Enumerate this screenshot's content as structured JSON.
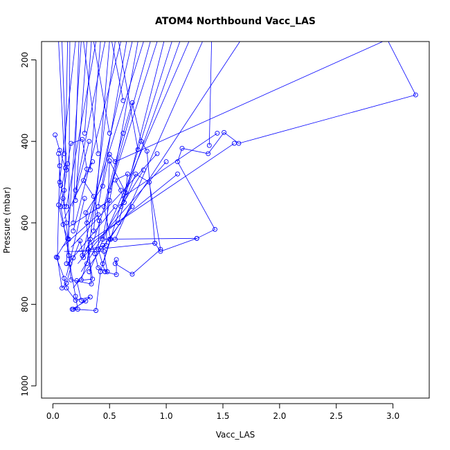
{
  "chart_data": {
    "type": "line",
    "title": "ATOM4 Northbound Vacc_LAS",
    "xlabel": "Vacc_LAS",
    "ylabel": "Pressure (mbar)",
    "xlim": [
      -0.1,
      3.32
    ],
    "ylim": [
      1030,
      155
    ],
    "y_reversed": true,
    "x_ticks": [
      "0.0",
      "0.5",
      "1.0",
      "1.5",
      "2.0",
      "2.5",
      "3.0"
    ],
    "y_ticks": [
      "200",
      "400",
      "600",
      "800",
      "1000"
    ],
    "grid": false,
    "legend": "none",
    "marker": "open-circle",
    "colors": {
      "series": "#0000ff",
      "axis": "#000000",
      "background": "#ffffff"
    },
    "series": [
      {
        "points": [
          [
            0.02,
            384
          ],
          [
            0.06,
            422
          ],
          [
            0.11,
            465
          ],
          [
            0.05,
            556
          ],
          [
            0.09,
            604
          ],
          [
            0.13,
            639
          ],
          [
            0.03,
            684
          ],
          [
            0.1,
            736
          ],
          [
            0.12,
            760
          ],
          [
            0.2,
            790
          ],
          [
            0.33,
            782
          ],
          [
            0.18,
            812
          ],
          [
            0.38,
            815
          ],
          [
            0.42,
            720
          ],
          [
            0.51,
            640
          ],
          [
            0.45,
            560
          ],
          [
            0.62,
            380
          ],
          [
            0.7,
            305
          ],
          [
            0.78,
            400
          ],
          [
            0.83,
            424
          ],
          [
            0.9,
            650
          ],
          [
            0.95,
            670
          ],
          [
            1.27,
            638
          ],
          [
            1.43,
            616
          ],
          [
            1.1,
            450
          ],
          [
            1.14,
            417
          ],
          [
            1.37,
            430
          ],
          [
            1.51,
            378
          ],
          [
            1.64,
            405
          ],
          [
            3.2,
            286
          ],
          [
            2.95,
            150
          ],
          [
            0.55,
            450
          ],
          [
            0.5,
            432
          ],
          [
            0.44,
            510
          ],
          [
            0.29,
            575
          ],
          [
            0.34,
            750
          ],
          [
            0.16,
            740
          ],
          [
            0.14,
            680
          ],
          [
            0.07,
            560
          ],
          [
            0.1,
            520
          ],
          [
            0.13,
            455
          ],
          [
            0.16,
            405
          ],
          [
            0.26,
            395
          ],
          [
            0.3,
            468
          ],
          [
            0.27,
            496
          ],
          [
            0.36,
            535
          ],
          [
            0.41,
            595
          ],
          [
            0.4,
            665
          ],
          [
            0.46,
            720
          ],
          [
            0.56,
            727
          ],
          [
            0.56,
            690
          ],
          [
            0.55,
            700
          ],
          [
            0.7,
            726
          ],
          [
            0.95,
            665
          ],
          [
            0.85,
            500
          ],
          [
            0.73,
            480
          ],
          [
            0.63,
            550
          ],
          [
            0.6,
            520
          ],
          [
            0.55,
            495
          ],
          [
            0.66,
            480
          ],
          [
            0.64,
            525
          ],
          [
            0.5,
            448
          ],
          [
            0.47,
            655
          ],
          [
            0.31,
            665
          ],
          [
            0.35,
            738
          ],
          [
            0.21,
            742
          ],
          [
            0.25,
            790
          ],
          [
            0.29,
            792
          ],
          [
            0.17,
            812
          ],
          [
            0.22,
            812
          ],
          [
            0.2,
            780
          ],
          [
            0.15,
            700
          ],
          [
            0.12,
            600
          ],
          [
            0.09,
            540
          ],
          [
            0.07,
            508
          ],
          [
            0.05,
            430
          ],
          [
            0.06,
            460
          ],
          [
            0.04,
            685
          ],
          [
            0.08,
            760
          ],
          [
            0.12,
            748
          ],
          [
            0.18,
            686
          ],
          [
            0.24,
            644
          ],
          [
            0.27,
            685
          ],
          [
            0.33,
            640
          ],
          [
            0.37,
            676
          ],
          [
            0.4,
            710
          ],
          [
            0.48,
            720
          ],
          [
            0.44,
            655
          ]
        ]
      }
    ],
    "extra_segments": [
      [
        [
          0.05,
          155
        ],
        [
          0.1,
          430
        ]
      ],
      [
        [
          0.08,
          155
        ],
        [
          0.12,
          470
        ]
      ],
      [
        [
          0.13,
          155
        ],
        [
          0.1,
          560
        ]
      ],
      [
        [
          0.15,
          155
        ],
        [
          0.14,
          640
        ]
      ],
      [
        [
          0.2,
          155
        ],
        [
          0.06,
          500
        ]
      ],
      [
        [
          0.23,
          155
        ],
        [
          0.18,
          600
        ]
      ],
      [
        [
          0.25,
          155
        ],
        [
          0.12,
          700
        ]
      ],
      [
        [
          0.3,
          155
        ],
        [
          0.2,
          545
        ]
      ],
      [
        [
          0.34,
          155
        ],
        [
          0.28,
          380
        ]
      ],
      [
        [
          0.38,
          155
        ],
        [
          0.12,
          560
        ]
      ],
      [
        [
          0.42,
          155
        ],
        [
          0.33,
          470
        ]
      ],
      [
        [
          0.46,
          155
        ],
        [
          0.2,
          520
        ]
      ],
      [
        [
          0.5,
          155
        ],
        [
          0.36,
          620
        ]
      ],
      [
        [
          0.55,
          155
        ],
        [
          0.3,
          700
        ]
      ],
      [
        [
          0.6,
          155
        ],
        [
          0.18,
          620
        ]
      ],
      [
        [
          0.65,
          155
        ],
        [
          0.4,
          560
        ]
      ],
      [
        [
          0.7,
          155
        ],
        [
          0.26,
          680
        ]
      ],
      [
        [
          0.75,
          155
        ],
        [
          0.44,
          640
        ]
      ],
      [
        [
          0.8,
          155
        ],
        [
          0.3,
          600
        ]
      ],
      [
        [
          0.86,
          155
        ],
        [
          0.5,
          520
        ]
      ],
      [
        [
          0.92,
          155
        ],
        [
          0.25,
          740
        ]
      ],
      [
        [
          0.98,
          155
        ],
        [
          0.58,
          600
        ]
      ],
      [
        [
          1.05,
          155
        ],
        [
          0.44,
          700
        ]
      ],
      [
        [
          1.12,
          155
        ],
        [
          0.6,
          560
        ]
      ],
      [
        [
          1.2,
          155
        ],
        [
          0.32,
          720
        ]
      ],
      [
        [
          1.32,
          155
        ],
        [
          0.55,
          640
        ]
      ],
      [
        [
          1.4,
          155
        ],
        [
          1.38,
          410
        ]
      ],
      [
        [
          1.65,
          155
        ],
        [
          0.5,
          640
        ]
      ],
      [
        [
          0.27,
          155
        ],
        [
          0.4,
          430
        ]
      ],
      [
        [
          0.36,
          155
        ],
        [
          0.5,
          380
        ]
      ],
      [
        [
          0.52,
          155
        ],
        [
          0.62,
          300
        ]
      ],
      [
        [
          0.58,
          155
        ],
        [
          0.75,
          420
        ]
      ],
      [
        [
          0.1,
          670
        ],
        [
          0.45,
          670
        ]
      ],
      [
        [
          0.2,
          670
        ],
        [
          0.9,
          650
        ]
      ],
      [
        [
          0.45,
          640
        ],
        [
          1.27,
          638
        ]
      ],
      [
        [
          0.12,
          705
        ],
        [
          0.55,
          560
        ]
      ],
      [
        [
          0.16,
          660
        ],
        [
          0.92,
          430
        ]
      ],
      [
        [
          0.22,
          700
        ],
        [
          1.0,
          450
        ]
      ],
      [
        [
          0.3,
          660
        ],
        [
          1.1,
          480
        ]
      ],
      [
        [
          0.18,
          760
        ],
        [
          0.7,
          560
        ]
      ],
      [
        [
          0.6,
          540
        ],
        [
          1.45,
          380
        ]
      ],
      [
        [
          0.35,
          640
        ],
        [
          1.6,
          405
        ]
      ],
      [
        [
          0.14,
          610
        ],
        [
          0.5,
          545
        ]
      ],
      [
        [
          0.08,
          660
        ],
        [
          0.4,
          580
        ]
      ],
      [
        [
          0.25,
          720
        ],
        [
          0.8,
          470
        ]
      ],
      [
        [
          0.1,
          590
        ],
        [
          0.35,
          450
        ]
      ],
      [
        [
          0.12,
          730
        ],
        [
          0.28,
          540
        ]
      ],
      [
        [
          0.17,
          560
        ],
        [
          0.32,
          400
        ]
      ]
    ]
  }
}
